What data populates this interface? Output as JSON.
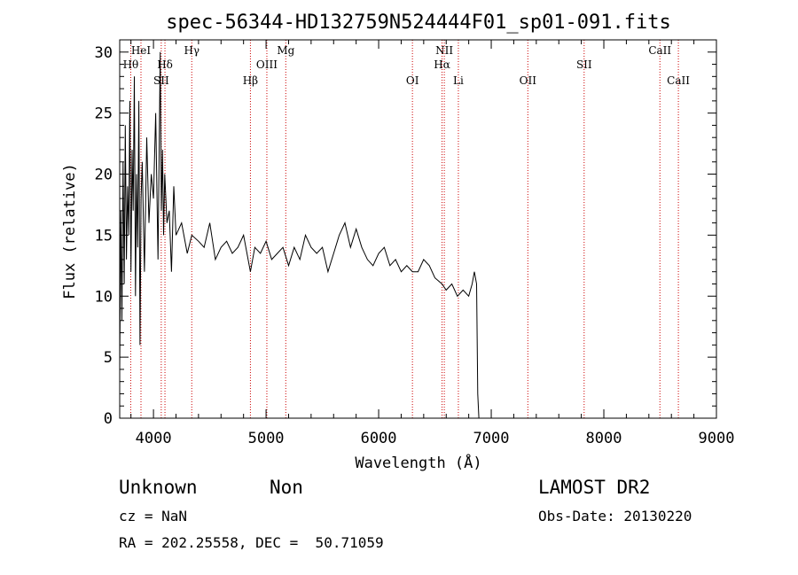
{
  "chart_data": {
    "type": "line",
    "title": "spec-56344-HD132759N524444F01_sp01-091.fits",
    "xlabel": "Wavelength (Å)",
    "ylabel": "Flux (relative)",
    "xlim": [
      3700,
      9000
    ],
    "ylim": [
      0,
      31
    ],
    "xticks": [
      4000,
      5000,
      6000,
      7000,
      8000,
      9000
    ],
    "yticks": [
      0,
      5,
      10,
      15,
      20,
      25,
      30
    ],
    "series": [
      {
        "x": [
          3700,
          3710,
          3720,
          3730,
          3740,
          3750,
          3760,
          3770,
          3780,
          3790,
          3800,
          3810,
          3820,
          3830,
          3840,
          3850,
          3860,
          3870,
          3880,
          3890,
          3900,
          3920,
          3940,
          3960,
          3980,
          4000,
          4020,
          4040,
          4060,
          4070,
          4080,
          4090,
          4100,
          4120,
          4140,
          4160,
          4180,
          4200,
          4250,
          4300,
          4340,
          4400,
          4450,
          4500,
          4550,
          4600,
          4650,
          4700,
          4750,
          4800,
          4861,
          4900,
          4950,
          5000,
          5050,
          5100,
          5150,
          5200,
          5250,
          5300,
          5350,
          5400,
          5450,
          5500,
          5550,
          5600,
          5650,
          5700,
          5750,
          5800,
          5850,
          5900,
          5950,
          6000,
          6050,
          6100,
          6150,
          6200,
          6250,
          6300,
          6350,
          6400,
          6450,
          6500,
          6563,
          6600,
          6650,
          6700,
          6750,
          6800,
          6830,
          6850,
          6870,
          6880,
          6890,
          6900
        ],
        "y": [
          4,
          17,
          8,
          21,
          11,
          24,
          13,
          19,
          15,
          26,
          12,
          22,
          17,
          28,
          10,
          20,
          14,
          26,
          6,
          18,
          21,
          12,
          23,
          16,
          20,
          18,
          25,
          13,
          30,
          17,
          22,
          15,
          20,
          16,
          17,
          12,
          19,
          15,
          16,
          13.5,
          15,
          14.5,
          14,
          16,
          13,
          14,
          14.5,
          13.5,
          14,
          15,
          12,
          14,
          13.5,
          14.5,
          13,
          13.5,
          14,
          12.5,
          14,
          13,
          15,
          14,
          13.5,
          14,
          12,
          13.5,
          15,
          16,
          14,
          15.5,
          14,
          13,
          12.5,
          13.5,
          14,
          12.5,
          13,
          12,
          12.5,
          12,
          12,
          13,
          12.5,
          11.5,
          11,
          10.5,
          11,
          10,
          10.5,
          10,
          11,
          12,
          11,
          2,
          0,
          0
        ]
      }
    ],
    "emission_lines": [
      {
        "label": "HeI",
        "x": 3889,
        "row": 0
      },
      {
        "label": "Hθ",
        "x": 3798,
        "row": 1
      },
      {
        "label": "Hδ",
        "x": 4102,
        "row": 1
      },
      {
        "label": "SII",
        "x": 4069,
        "row": 2
      },
      {
        "label": "Hγ",
        "x": 4340,
        "row": 0
      },
      {
        "label": "Mg",
        "x": 5175,
        "row": 0
      },
      {
        "label": "OIII",
        "x": 5007,
        "row": 1
      },
      {
        "label": "Hβ",
        "x": 4861,
        "row": 2
      },
      {
        "label": "NII",
        "x": 6583,
        "row": 0
      },
      {
        "label": "Hα",
        "x": 6563,
        "row": 1
      },
      {
        "label": "OI",
        "x": 6300,
        "row": 2
      },
      {
        "label": "Li",
        "x": 6708,
        "row": 2
      },
      {
        "label": "OII",
        "x": 7325,
        "row": 2
      },
      {
        "label": "SII",
        "x": 7825,
        "row": 1
      },
      {
        "label": "CaII",
        "x": 8498,
        "row": 0
      },
      {
        "label": "CaII",
        "x": 8662,
        "row": 2
      }
    ],
    "line_marker_color": "#cc0000"
  },
  "info": {
    "object_class": "Unknown",
    "subclass": "Non",
    "survey": "LAMOST DR2",
    "cz": "cz = NaN",
    "obs_date": "Obs-Date: 20130220",
    "coords": "RA = 202.25558, DEC =  50.71059"
  }
}
